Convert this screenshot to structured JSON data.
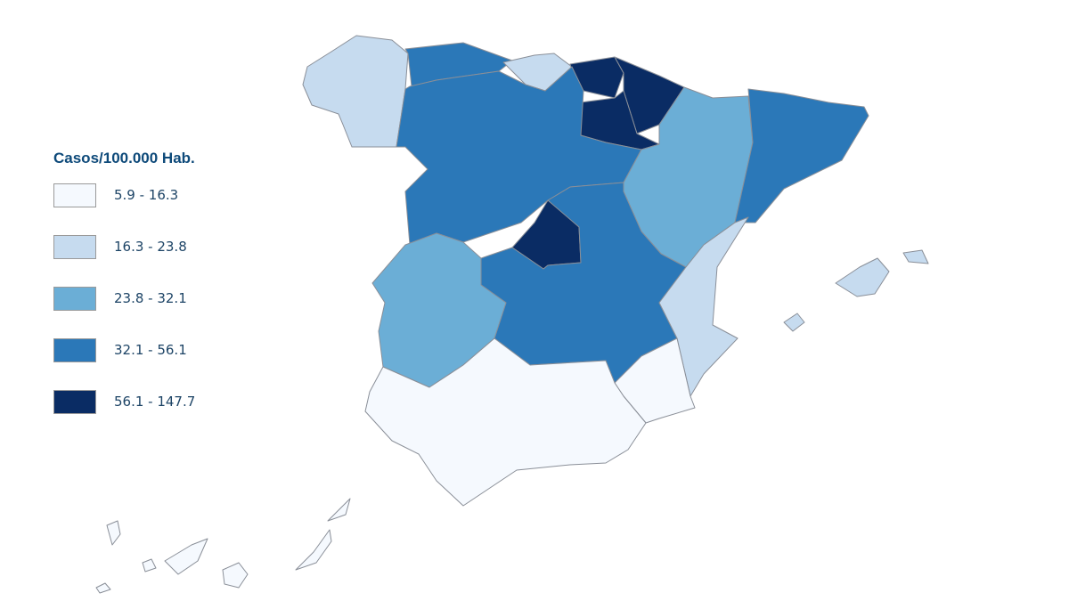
{
  "legend": {
    "title": "Casos/100.000 Hab.",
    "classes": [
      {
        "label": "5.9 - 16.3",
        "color": "#f5f9fe"
      },
      {
        "label": "16.3 - 23.8",
        "color": "#c6dbef"
      },
      {
        "label": "23.8 - 32.1",
        "color": "#6baed6"
      },
      {
        "label": "32.1 - 56.1",
        "color": "#2b78b8"
      },
      {
        "label": "56.1 - 147.7",
        "color": "#0a2c64"
      }
    ]
  },
  "region_class": {
    "galicia": 1,
    "asturias": 3,
    "cantabria": 1,
    "pais-vasco": 4,
    "navarra": 4,
    "la-rioja": 4,
    "castilla-y-leon": 3,
    "aragon": 2,
    "cataluna": 3,
    "madrid": 4,
    "castilla-la-mancha": 3,
    "extremadura": 2,
    "comunidad-valenciana": 1,
    "murcia": 0,
    "andalucia": 0,
    "baleares": 1,
    "canarias": 0
  }
}
